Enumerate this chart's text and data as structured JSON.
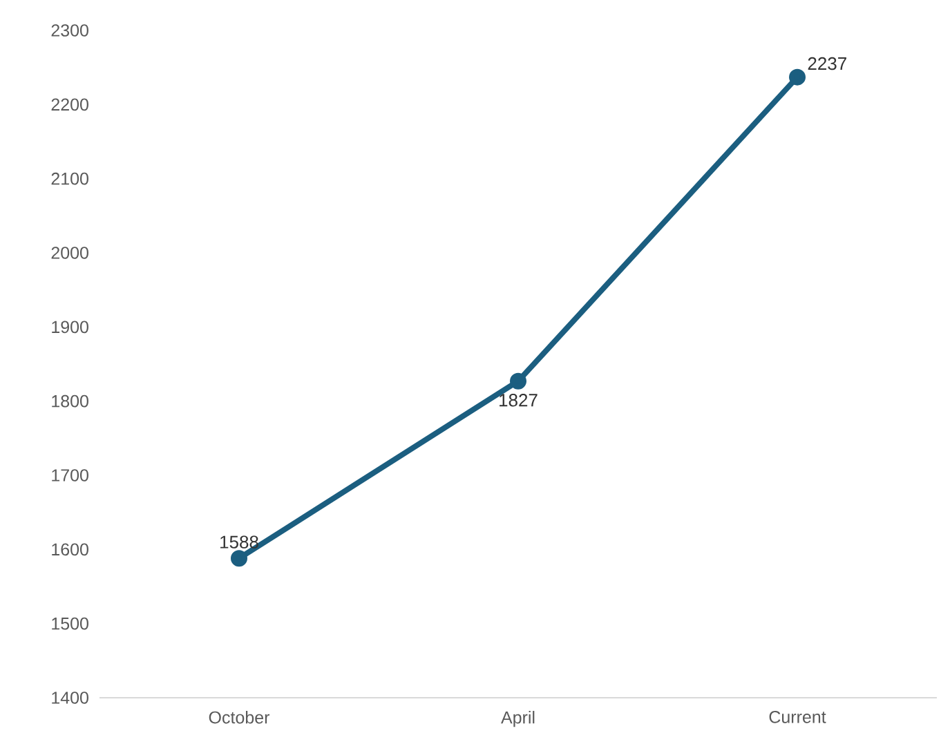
{
  "chart_data": {
    "type": "line",
    "categories": [
      "October",
      "April",
      "Current"
    ],
    "series": [
      {
        "color": "#1b5e80",
        "values": [
          1588,
          1827,
          2237
        ]
      }
    ],
    "ylim": [
      1400,
      2300
    ],
    "yticks": [
      1400,
      1500,
      1600,
      1700,
      1800,
      1900,
      2000,
      2100,
      2200,
      2300
    ],
    "data_labels": true,
    "marker": "circle",
    "line_style": "solid",
    "grid": false
  }
}
